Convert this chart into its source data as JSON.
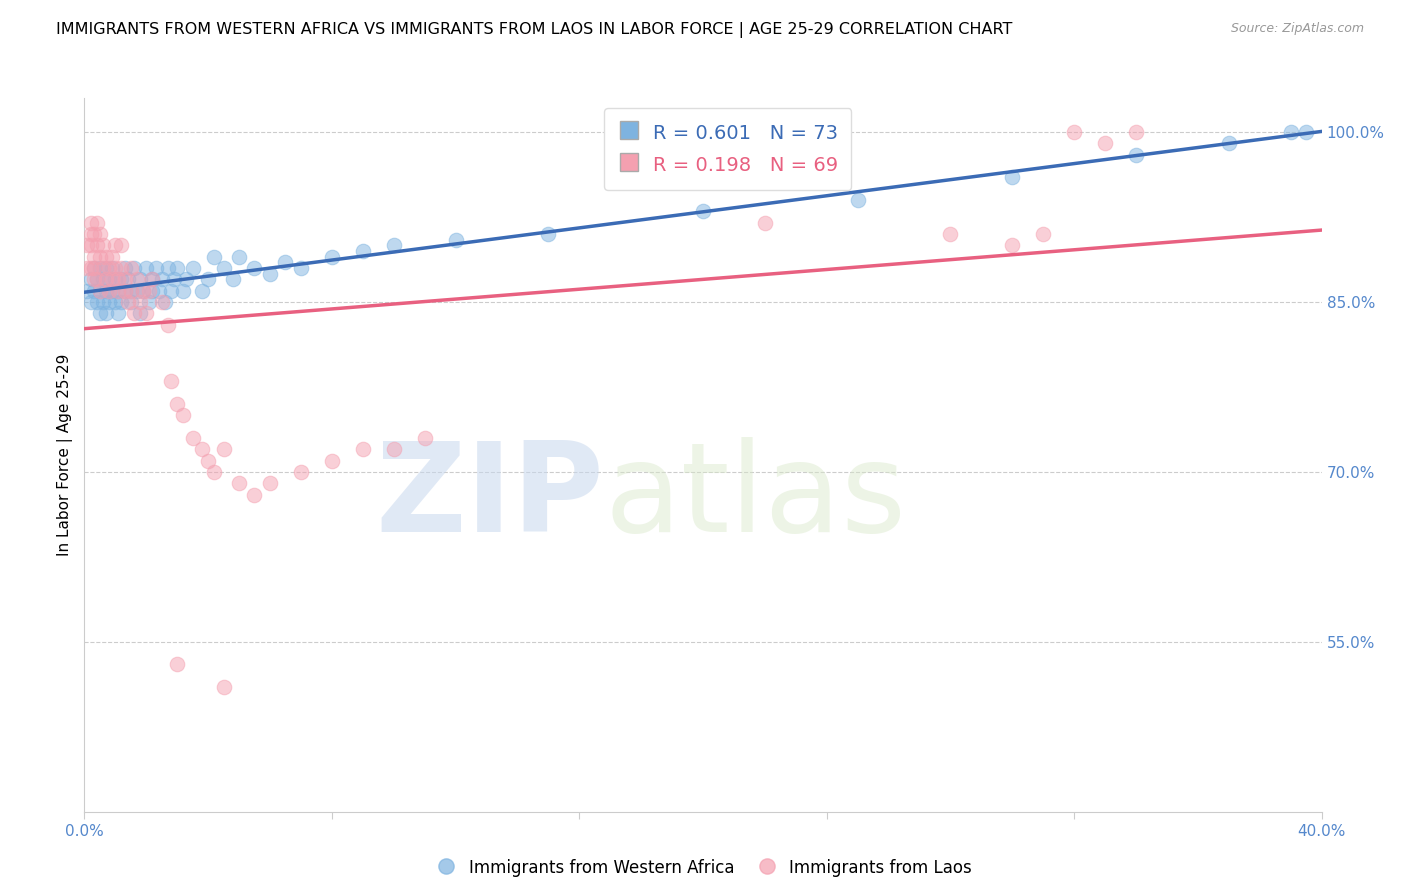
{
  "title": "IMMIGRANTS FROM WESTERN AFRICA VS IMMIGRANTS FROM LAOS IN LABOR FORCE | AGE 25-29 CORRELATION CHART",
  "source": "Source: ZipAtlas.com",
  "ylabel_left": "In Labor Force | Age 25-29",
  "x_min": 0.0,
  "x_max": 0.4,
  "y_min": 0.4,
  "y_max": 1.03,
  "y_ticks_right": [
    0.55,
    0.7,
    0.85,
    1.0
  ],
  "y_tick_labels_right": [
    "55.0%",
    "70.0%",
    "85.0%",
    "100.0%"
  ],
  "blue_color": "#7EB3E0",
  "pink_color": "#F4A0B0",
  "blue_line_color": "#3B6BB5",
  "pink_line_color": "#E86080",
  "legend_blue_R": "0.601",
  "legend_blue_N": "73",
  "legend_pink_R": "0.198",
  "legend_pink_N": "69",
  "label_blue": "Immigrants from Western Africa",
  "label_pink": "Immigrants from Laos",
  "watermark_zip": "ZIP",
  "watermark_atlas": "atlas",
  "grid_color": "#cccccc",
  "axis_color": "#5588CC",
  "blue_scatter": [
    [
      0.001,
      0.86
    ],
    [
      0.002,
      0.87
    ],
    [
      0.002,
      0.85
    ],
    [
      0.003,
      0.88
    ],
    [
      0.003,
      0.86
    ],
    [
      0.004,
      0.85
    ],
    [
      0.004,
      0.87
    ],
    [
      0.005,
      0.86
    ],
    [
      0.005,
      0.84
    ],
    [
      0.005,
      0.88
    ],
    [
      0.006,
      0.87
    ],
    [
      0.006,
      0.85
    ],
    [
      0.007,
      0.86
    ],
    [
      0.007,
      0.88
    ],
    [
      0.007,
      0.84
    ],
    [
      0.008,
      0.87
    ],
    [
      0.008,
      0.85
    ],
    [
      0.008,
      0.86
    ],
    [
      0.009,
      0.88
    ],
    [
      0.009,
      0.86
    ],
    [
      0.01,
      0.85
    ],
    [
      0.01,
      0.87
    ],
    [
      0.011,
      0.86
    ],
    [
      0.011,
      0.84
    ],
    [
      0.012,
      0.87
    ],
    [
      0.012,
      0.85
    ],
    [
      0.013,
      0.88
    ],
    [
      0.013,
      0.86
    ],
    [
      0.014,
      0.87
    ],
    [
      0.015,
      0.85
    ],
    [
      0.015,
      0.86
    ],
    [
      0.016,
      0.88
    ],
    [
      0.017,
      0.86
    ],
    [
      0.018,
      0.87
    ],
    [
      0.018,
      0.84
    ],
    [
      0.019,
      0.86
    ],
    [
      0.02,
      0.88
    ],
    [
      0.021,
      0.85
    ],
    [
      0.022,
      0.87
    ],
    [
      0.022,
      0.86
    ],
    [
      0.023,
      0.88
    ],
    [
      0.024,
      0.86
    ],
    [
      0.025,
      0.87
    ],
    [
      0.026,
      0.85
    ],
    [
      0.027,
      0.88
    ],
    [
      0.028,
      0.86
    ],
    [
      0.029,
      0.87
    ],
    [
      0.03,
      0.88
    ],
    [
      0.032,
      0.86
    ],
    [
      0.033,
      0.87
    ],
    [
      0.035,
      0.88
    ],
    [
      0.038,
      0.86
    ],
    [
      0.04,
      0.87
    ],
    [
      0.042,
      0.89
    ],
    [
      0.045,
      0.88
    ],
    [
      0.048,
      0.87
    ],
    [
      0.05,
      0.89
    ],
    [
      0.055,
      0.88
    ],
    [
      0.06,
      0.875
    ],
    [
      0.065,
      0.885
    ],
    [
      0.07,
      0.88
    ],
    [
      0.08,
      0.89
    ],
    [
      0.09,
      0.895
    ],
    [
      0.1,
      0.9
    ],
    [
      0.12,
      0.905
    ],
    [
      0.15,
      0.91
    ],
    [
      0.2,
      0.93
    ],
    [
      0.25,
      0.94
    ],
    [
      0.3,
      0.96
    ],
    [
      0.34,
      0.98
    ],
    [
      0.37,
      0.99
    ],
    [
      0.39,
      1.0
    ],
    [
      0.395,
      1.0
    ]
  ],
  "pink_scatter": [
    [
      0.001,
      0.88
    ],
    [
      0.001,
      0.9
    ],
    [
      0.002,
      0.91
    ],
    [
      0.002,
      0.88
    ],
    [
      0.002,
      0.92
    ],
    [
      0.002,
      0.9
    ],
    [
      0.003,
      0.89
    ],
    [
      0.003,
      0.87
    ],
    [
      0.003,
      0.91
    ],
    [
      0.003,
      0.88
    ],
    [
      0.004,
      0.9
    ],
    [
      0.004,
      0.87
    ],
    [
      0.004,
      0.92
    ],
    [
      0.005,
      0.89
    ],
    [
      0.005,
      0.86
    ],
    [
      0.005,
      0.91
    ],
    [
      0.006,
      0.88
    ],
    [
      0.006,
      0.9
    ],
    [
      0.007,
      0.87
    ],
    [
      0.007,
      0.89
    ],
    [
      0.008,
      0.88
    ],
    [
      0.008,
      0.86
    ],
    [
      0.009,
      0.89
    ],
    [
      0.009,
      0.87
    ],
    [
      0.01,
      0.88
    ],
    [
      0.01,
      0.9
    ],
    [
      0.011,
      0.86
    ],
    [
      0.011,
      0.87
    ],
    [
      0.012,
      0.88
    ],
    [
      0.012,
      0.9
    ],
    [
      0.013,
      0.86
    ],
    [
      0.013,
      0.87
    ],
    [
      0.014,
      0.85
    ],
    [
      0.015,
      0.88
    ],
    [
      0.015,
      0.86
    ],
    [
      0.016,
      0.84
    ],
    [
      0.017,
      0.87
    ],
    [
      0.018,
      0.85
    ],
    [
      0.019,
      0.86
    ],
    [
      0.02,
      0.84
    ],
    [
      0.021,
      0.86
    ],
    [
      0.022,
      0.87
    ],
    [
      0.025,
      0.85
    ],
    [
      0.027,
      0.83
    ],
    [
      0.028,
      0.78
    ],
    [
      0.03,
      0.76
    ],
    [
      0.032,
      0.75
    ],
    [
      0.035,
      0.73
    ],
    [
      0.038,
      0.72
    ],
    [
      0.04,
      0.71
    ],
    [
      0.042,
      0.7
    ],
    [
      0.045,
      0.72
    ],
    [
      0.05,
      0.69
    ],
    [
      0.055,
      0.68
    ],
    [
      0.06,
      0.69
    ],
    [
      0.07,
      0.7
    ],
    [
      0.08,
      0.71
    ],
    [
      0.09,
      0.72
    ],
    [
      0.1,
      0.72
    ],
    [
      0.11,
      0.73
    ],
    [
      0.03,
      0.53
    ],
    [
      0.045,
      0.51
    ],
    [
      0.22,
      0.92
    ],
    [
      0.28,
      0.91
    ],
    [
      0.3,
      0.9
    ],
    [
      0.31,
      0.91
    ],
    [
      0.32,
      1.0
    ],
    [
      0.33,
      0.99
    ],
    [
      0.34,
      1.0
    ]
  ]
}
